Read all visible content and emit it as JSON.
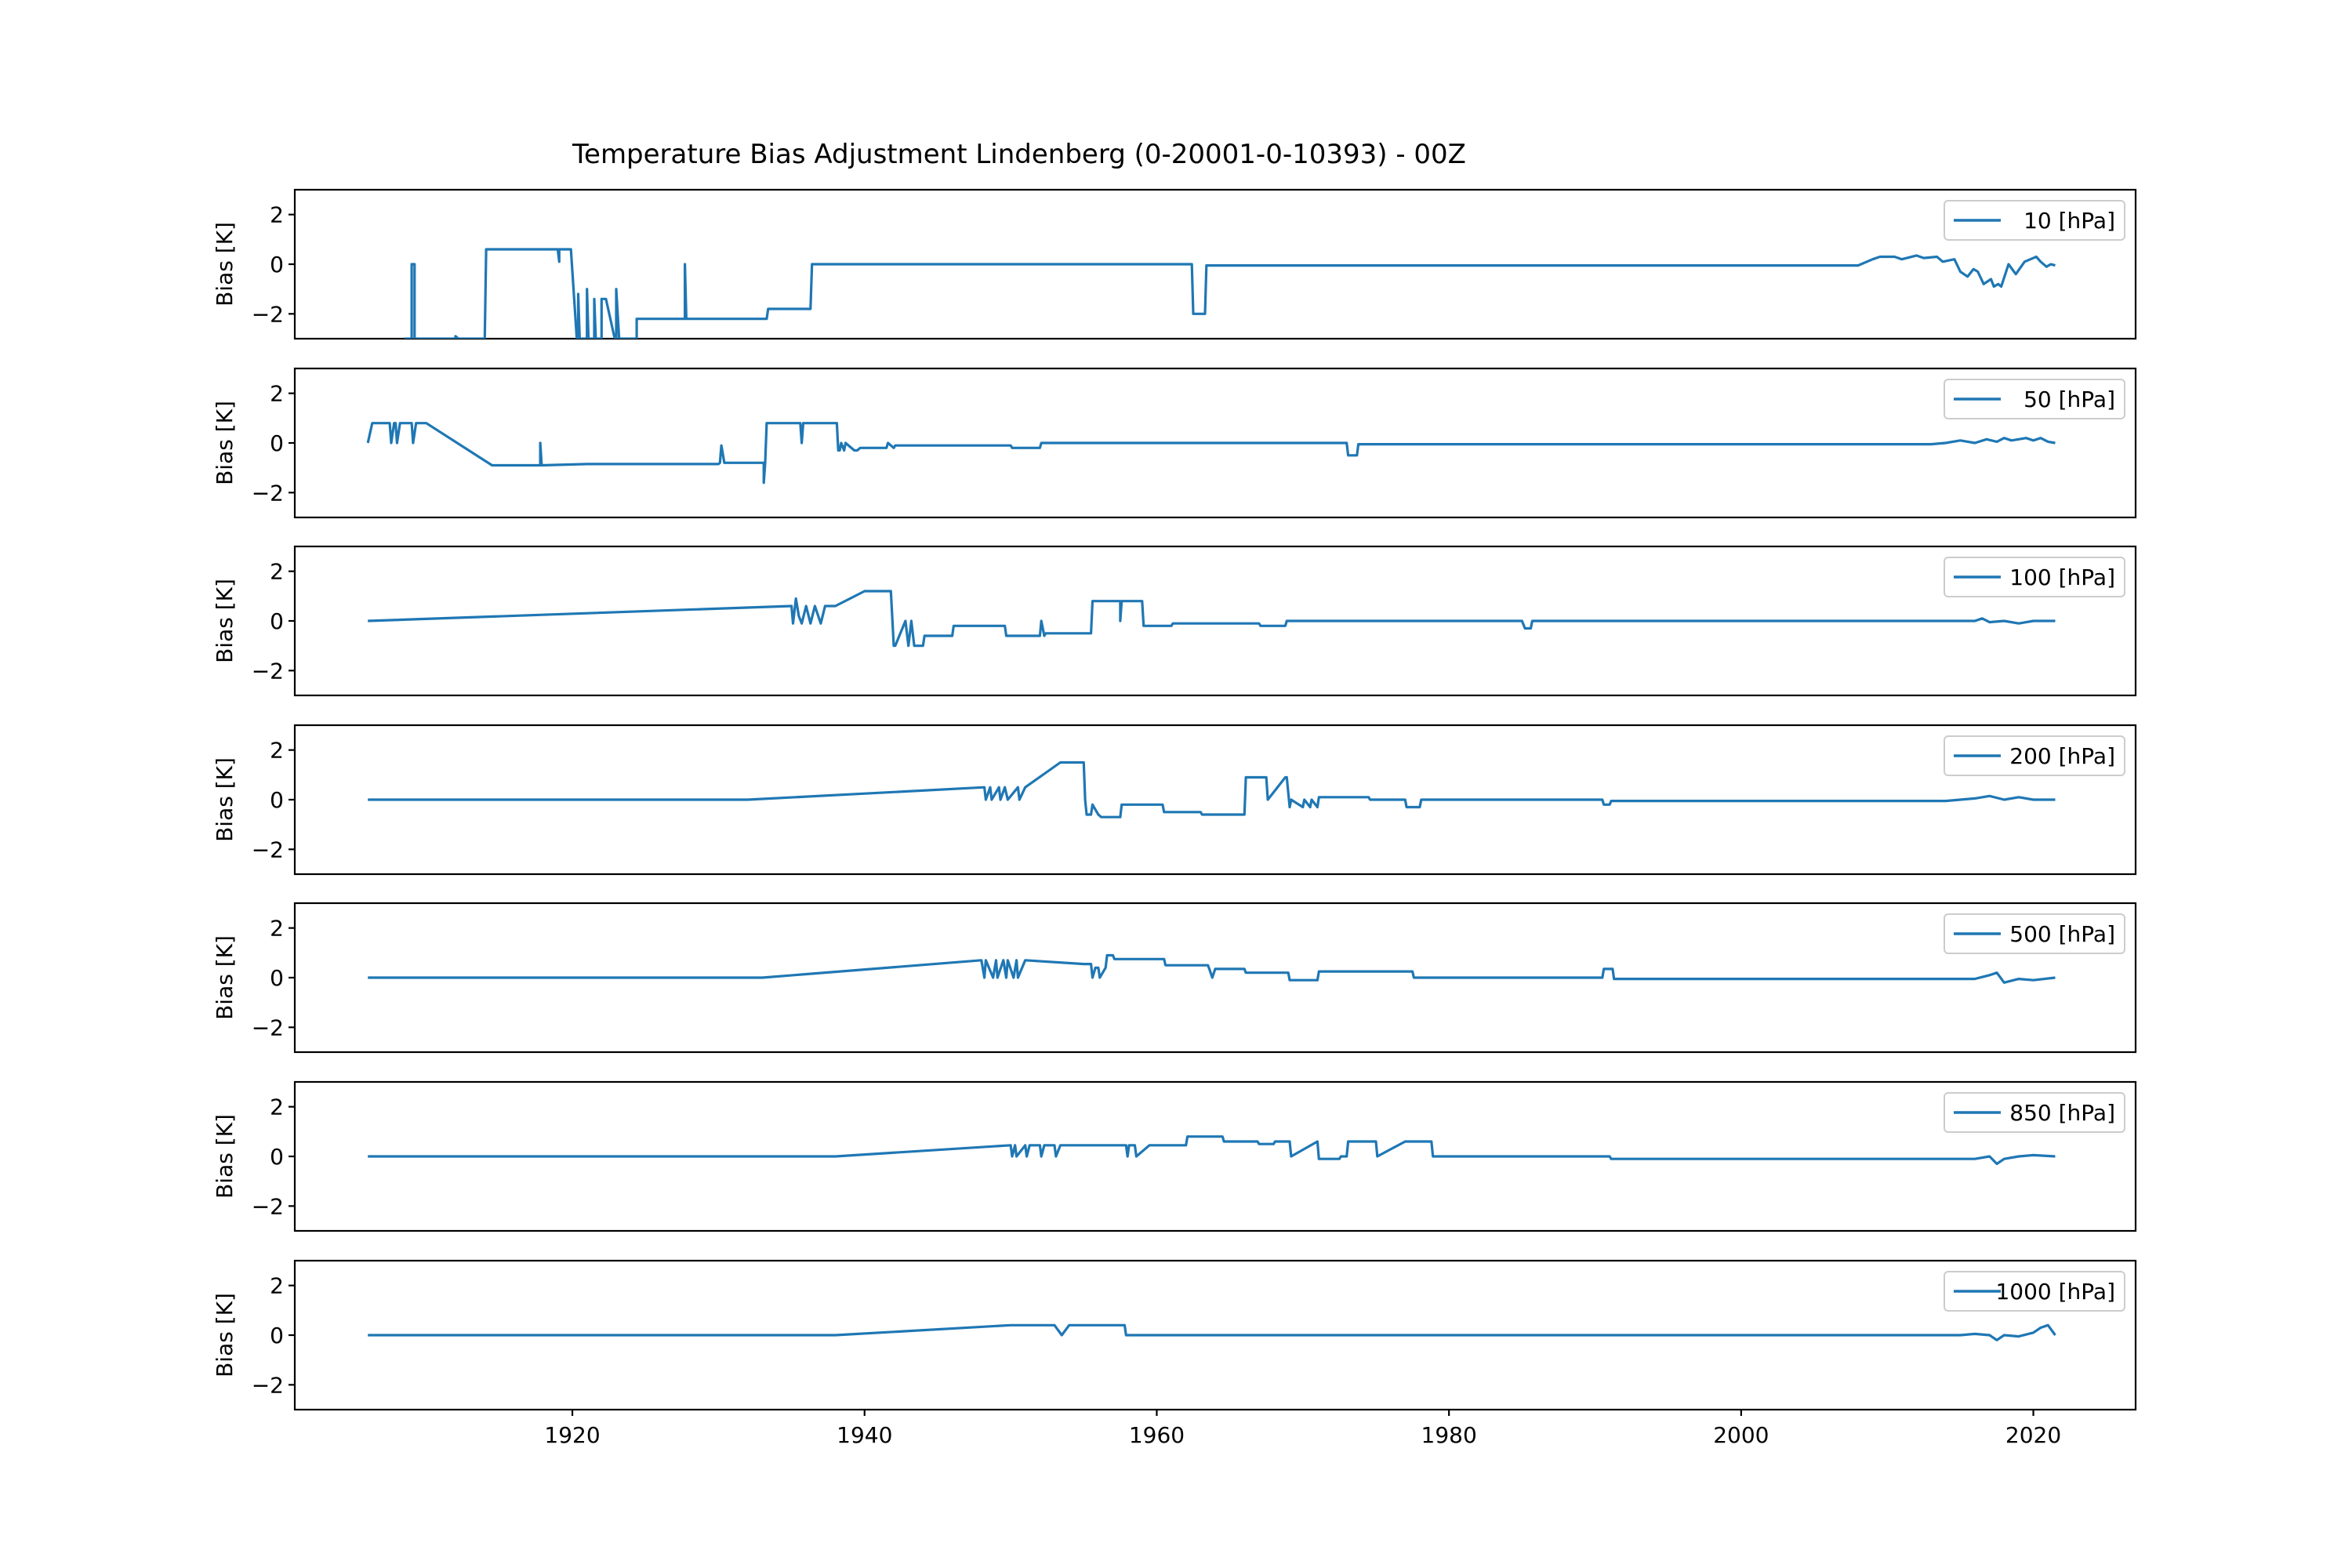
{
  "figure": {
    "title": "Temperature Bias Adjustment Lindenberg (0-20001-0-10393) - 00Z"
  },
  "colors": {
    "series": "#1f77b4",
    "axis": "#000000",
    "legend_border": "#cccccc"
  },
  "chart_data": [
    {
      "type": "line",
      "ylabel": "Bias [K]",
      "xlabel": "",
      "ylim": [
        -3,
        3
      ],
      "xlim": [
        1901,
        2027
      ],
      "yticks": [
        -2,
        0,
        2
      ],
      "xticks": [],
      "legend": "upper right",
      "grid": false,
      "series": [
        {
          "name": "10 [hPa]",
          "x": [
            1908.5,
            1909.0,
            1909.0,
            1909.2,
            1909.2,
            1909.6,
            1911.8,
            1912.0,
            1912.0,
            1912.2,
            1914.0,
            1914.1,
            1914.2,
            1919.0,
            1919.1,
            1919.1,
            1919.2,
            1919.3,
            1919.3,
            1919.9,
            1920.3,
            1920.4,
            1920.4,
            1920.5,
            1920.9,
            1921.0,
            1921.0,
            1921.1,
            1921.4,
            1921.5,
            1921.5,
            1921.6,
            1921.9,
            1922.0,
            1922.0,
            1922.3,
            1922.9,
            1923.0,
            1923.0,
            1923.2,
            1924.3,
            1924.4,
            1924.4,
            1924.6,
            1924.9,
            1925.0,
            1925.0,
            1927.6,
            1927.7,
            1927.7,
            1927.8,
            1933.3,
            1933.4,
            1936.2,
            1936.3,
            1936.4,
            1937.0,
            1937.1,
            1962.4,
            1962.5,
            1963.2,
            1963.3,
            1963.4,
            1991.8,
            2007.7,
            2008.0,
            2009.0,
            2009.5,
            2010.5,
            2011.0,
            2012.0,
            2012.5,
            2013.4,
            2013.8,
            2014.6,
            2015.0,
            2015.5,
            2015.9,
            2016.2,
            2016.6,
            2017.1,
            2017.3,
            2017.6,
            2017.8,
            2018.3,
            2018.8,
            2019.4,
            2019.8,
            2020.2,
            2020.5,
            2020.9,
            2021.2,
            2021.5
          ],
          "y": [
            -3.0,
            -3.0,
            0.0,
            0.0,
            -3.0,
            -3.0,
            -3.0,
            -3.0,
            -2.9,
            -3.0,
            -3.0,
            0.6,
            0.6,
            0.6,
            0.1,
            0.6,
            0.6,
            0.6,
            0.6,
            0.6,
            -3.0,
            -3.0,
            -1.2,
            -3.0,
            -3.0,
            -3.0,
            -1.0,
            -3.0,
            -3.0,
            -3.0,
            -1.4,
            -3.0,
            -3.0,
            -3.0,
            -1.4,
            -1.4,
            -3.0,
            -3.0,
            -1.0,
            -3.0,
            -3.0,
            -3.0,
            -2.2,
            -2.2,
            -2.2,
            -2.2,
            -2.2,
            -2.2,
            -2.2,
            0.0,
            -2.2,
            -2.2,
            -1.8,
            -1.8,
            -1.8,
            0.0,
            0.0,
            0.0,
            0.0,
            -2.0,
            -2.0,
            -2.0,
            -0.05,
            -0.05,
            -0.05,
            -0.05,
            0.2,
            0.3,
            0.3,
            0.2,
            0.35,
            0.25,
            0.3,
            0.1,
            0.2,
            -0.3,
            -0.5,
            -0.2,
            -0.3,
            -0.8,
            -0.6,
            -0.9,
            -0.8,
            -0.9,
            0.0,
            -0.4,
            0.1,
            0.2,
            0.3,
            0.1,
            -0.1,
            0.0,
            -0.05
          ]
        }
      ]
    },
    {
      "type": "line",
      "ylabel": "Bias [K]",
      "xlabel": "",
      "ylim": [
        -3,
        3
      ],
      "xlim": [
        1901,
        2027
      ],
      "yticks": [
        -2,
        0,
        2
      ],
      "xticks": [],
      "legend": "upper right",
      "grid": false,
      "series": [
        {
          "name": "50 [hPa]",
          "x": [
            1906.0,
            1906.3,
            1906.5,
            1907.5,
            1907.6,
            1907.8,
            1907.9,
            1908.0,
            1908.2,
            1908.4,
            1908.5,
            1909.0,
            1909.1,
            1909.3,
            1909.8,
            1910.0,
            1914.5,
            1917.7,
            1917.8,
            1917.8,
            1917.9,
            1921.0,
            1929.8,
            1930.0,
            1930.1,
            1930.2,
            1930.4,
            1933.1,
            1933.1,
            1933.2,
            1933.3,
            1933.4,
            1934.2,
            1935.6,
            1935.7,
            1935.8,
            1938.1,
            1938.2,
            1938.3,
            1938.4,
            1938.6,
            1938.7,
            1939.3,
            1939.5,
            1939.7,
            1941.5,
            1941.6,
            1942.0,
            1942.1,
            1950.0,
            1950.1,
            1952.0,
            1952.1,
            1973.0,
            1973.1,
            1973.7,
            1973.8,
            2013.0,
            2014.0,
            2015.0,
            2016.0,
            2016.8,
            2017.5,
            2018.0,
            2018.5,
            2019.0,
            2019.5,
            2020.0,
            2020.5,
            2021.0,
            2021.5
          ],
          "y": [
            0.0,
            0.8,
            0.8,
            0.8,
            0.0,
            0.8,
            0.8,
            0.0,
            0.8,
            0.8,
            0.8,
            0.8,
            0.0,
            0.8,
            0.8,
            0.8,
            -0.9,
            -0.9,
            -0.9,
            0.0,
            -0.9,
            -0.85,
            -0.85,
            -0.85,
            -0.8,
            -0.1,
            -0.8,
            -0.8,
            -1.6,
            -0.8,
            0.8,
            0.8,
            0.8,
            0.8,
            0.0,
            0.8,
            0.8,
            -0.3,
            -0.3,
            0.0,
            -0.3,
            0.0,
            -0.3,
            -0.3,
            -0.2,
            -0.2,
            0.0,
            -0.2,
            -0.1,
            -0.1,
            -0.2,
            -0.2,
            0.0,
            0.0,
            -0.5,
            -0.5,
            -0.05,
            -0.05,
            0.0,
            0.1,
            0.0,
            0.15,
            0.05,
            0.2,
            0.1,
            0.15,
            0.2,
            0.1,
            0.2,
            0.05,
            0.0
          ]
        }
      ]
    },
    {
      "type": "line",
      "ylabel": "Bias [K]",
      "xlabel": "",
      "ylim": [
        -3,
        3
      ],
      "xlim": [
        1901,
        2027
      ],
      "yticks": [
        -2,
        0,
        2
      ],
      "xticks": [],
      "legend": "upper right",
      "grid": false,
      "series": [
        {
          "name": "100 [hPa]",
          "x": [
            1906.0,
            1935.0,
            1935.1,
            1935.3,
            1935.5,
            1935.7,
            1936.0,
            1936.3,
            1936.6,
            1937.0,
            1937.3,
            1937.5,
            1938.0,
            1940.0,
            1941.8,
            1942.0,
            1942.1,
            1942.8,
            1943.0,
            1943.2,
            1943.4,
            1944.0,
            1944.1,
            1946.0,
            1946.1,
            1949.6,
            1949.7,
            1952.0,
            1952.1,
            1952.3,
            1952.4,
            1955.5,
            1955.6,
            1957.5,
            1957.5,
            1957.6,
            1959.0,
            1959.1,
            1960.0,
            1961.0,
            1961.1,
            1965.0,
            1965.1,
            1967.0,
            1967.1,
            1968.8,
            1968.9,
            1985.0,
            1985.2,
            1985.6,
            1985.7,
            2015.0,
            2016.0,
            2016.5,
            2017.0,
            2018.0,
            2019.0,
            2020.0,
            2021.5
          ],
          "y": [
            0.0,
            0.6,
            -0.1,
            0.9,
            0.2,
            -0.1,
            0.6,
            -0.1,
            0.6,
            -0.1,
            0.6,
            0.6,
            0.6,
            1.2,
            1.2,
            -1.0,
            -1.0,
            0.0,
            -1.0,
            0.0,
            -1.0,
            -1.0,
            -0.6,
            -0.6,
            -0.2,
            -0.2,
            -0.6,
            -0.6,
            0.0,
            -0.6,
            -0.5,
            -0.5,
            0.8,
            0.8,
            0.0,
            0.8,
            0.8,
            -0.2,
            -0.2,
            -0.2,
            -0.1,
            -0.1,
            -0.1,
            -0.1,
            -0.2,
            -0.2,
            0.0,
            0.0,
            -0.3,
            -0.3,
            0.0,
            0.0,
            0.0,
            0.1,
            -0.05,
            0.0,
            -0.1,
            0.0,
            0.0
          ]
        }
      ]
    },
    {
      "type": "line",
      "ylabel": "Bias [K]",
      "xlabel": "",
      "ylim": [
        -3,
        3
      ],
      "xlim": [
        1901,
        2027
      ],
      "yticks": [
        -2,
        0,
        2
      ],
      "xticks": [],
      "legend": "upper right",
      "grid": false,
      "series": [
        {
          "name": "200 [hPa]",
          "x": [
            1906.0,
            1932.0,
            1948.2,
            1948.3,
            1948.6,
            1948.7,
            1949.2,
            1949.3,
            1949.6,
            1949.8,
            1950.5,
            1950.6,
            1951.0,
            1953.4,
            1955.0,
            1955.1,
            1955.2,
            1955.5,
            1955.6,
            1956.0,
            1956.2,
            1957.5,
            1957.6,
            1960.4,
            1960.5,
            1963.0,
            1963.1,
            1966.0,
            1966.1,
            1967.5,
            1967.6,
            1968.8,
            1968.9,
            1969.1,
            1969.2,
            1970.0,
            1970.1,
            1970.5,
            1970.6,
            1971.0,
            1971.1,
            1974.5,
            1974.6,
            1977.0,
            1977.1,
            1978.0,
            1978.1,
            1990.5,
            1990.6,
            1991.0,
            1991.1,
            2014.0,
            2016.0,
            2017.0,
            2018.0,
            2019.0,
            2020.0,
            2021.5
          ],
          "y": [
            0.0,
            0.0,
            0.5,
            0.0,
            0.5,
            0.0,
            0.5,
            0.0,
            0.5,
            0.0,
            0.5,
            0.0,
            0.5,
            1.5,
            1.5,
            0.0,
            -0.6,
            -0.6,
            -0.2,
            -0.6,
            -0.7,
            -0.7,
            -0.2,
            -0.2,
            -0.5,
            -0.5,
            -0.6,
            -0.6,
            0.9,
            0.9,
            0.0,
            0.9,
            0.9,
            -0.3,
            0.0,
            -0.3,
            0.0,
            -0.3,
            0.0,
            -0.3,
            0.1,
            0.1,
            0.0,
            0.0,
            -0.3,
            -0.3,
            0.0,
            0.0,
            -0.2,
            -0.2,
            -0.05,
            -0.05,
            0.05,
            0.15,
            0.0,
            0.1,
            0.0,
            0.0
          ]
        }
      ]
    },
    {
      "type": "line",
      "ylabel": "Bias [K]",
      "xlabel": "",
      "ylim": [
        -3,
        3
      ],
      "xlim": [
        1901,
        2027
      ],
      "yticks": [
        -2,
        0,
        2
      ],
      "xticks": [],
      "legend": "upper right",
      "grid": false,
      "series": [
        {
          "name": "500 [hPa]",
          "x": [
            1906.0,
            1933.0,
            1948.0,
            1948.2,
            1948.3,
            1948.8,
            1949.0,
            1949.1,
            1949.5,
            1949.7,
            1949.8,
            1950.2,
            1950.4,
            1950.5,
            1951.0,
            1955.0,
            1955.5,
            1955.6,
            1955.8,
            1956.0,
            1956.1,
            1956.5,
            1956.6,
            1957.0,
            1957.1,
            1958.0,
            1958.1,
            1960.5,
            1960.6,
            1963.5,
            1963.6,
            1963.8,
            1964.0,
            1966.0,
            1966.1,
            1968.0,
            1968.1,
            1969.0,
            1969.1,
            1971.0,
            1971.1,
            1977.5,
            1977.6,
            1990.5,
            1990.6,
            1991.2,
            1991.3,
            2016.0,
            2017.0,
            2017.5,
            2018.0,
            2019.0,
            2020.0,
            2021.5
          ],
          "y": [
            0.0,
            0.0,
            0.7,
            0.0,
            0.7,
            0.0,
            0.7,
            0.0,
            0.7,
            0.0,
            0.7,
            0.0,
            0.7,
            0.0,
            0.7,
            0.55,
            0.55,
            0.0,
            0.4,
            0.4,
            0.0,
            0.4,
            0.9,
            0.9,
            0.75,
            0.75,
            0.75,
            0.75,
            0.5,
            0.5,
            0.35,
            0.0,
            0.35,
            0.35,
            0.2,
            0.2,
            0.2,
            0.2,
            -0.1,
            -0.1,
            0.25,
            0.25,
            0.0,
            0.0,
            0.35,
            0.35,
            -0.05,
            -0.05,
            0.1,
            0.2,
            -0.2,
            -0.05,
            -0.1,
            0.0
          ]
        }
      ]
    },
    {
      "type": "line",
      "ylabel": "Bias [K]",
      "xlabel": "",
      "ylim": [
        -3,
        3
      ],
      "xlim": [
        1901,
        2027
      ],
      "yticks": [
        -2,
        0,
        2
      ],
      "xticks": [],
      "legend": "upper right",
      "grid": false,
      "series": [
        {
          "name": "850 [hPa]",
          "x": [
            1906.0,
            1938.0,
            1950.0,
            1950.1,
            1950.3,
            1950.4,
            1951.0,
            1951.1,
            1951.3,
            1952.0,
            1952.1,
            1952.3,
            1953.0,
            1953.1,
            1953.4,
            1957.9,
            1958.0,
            1958.1,
            1958.5,
            1958.6,
            1959.5,
            1959.6,
            1962.0,
            1962.1,
            1963.0,
            1964.5,
            1964.6,
            1966.8,
            1966.9,
            1967.0,
            1968.0,
            1968.1,
            1969.0,
            1969.1,
            1969.2,
            1971.0,
            1971.1,
            1972.5,
            1972.6,
            1973.0,
            1973.1,
            1975.0,
            1975.1,
            1977.0,
            1977.1,
            1978.8,
            1978.9,
            1991.0,
            1991.1,
            2016.0,
            2017.0,
            2017.5,
            2018.0,
            2019.0,
            2020.0,
            2021.5
          ],
          "y": [
            0.0,
            0.0,
            0.45,
            0.0,
            0.45,
            0.0,
            0.45,
            0.0,
            0.45,
            0.45,
            0.0,
            0.45,
            0.45,
            0.0,
            0.45,
            0.45,
            0.0,
            0.45,
            0.45,
            0.0,
            0.45,
            0.45,
            0.45,
            0.8,
            0.8,
            0.8,
            0.6,
            0.6,
            0.6,
            0.5,
            0.5,
            0.6,
            0.6,
            0.6,
            0.0,
            0.6,
            -0.1,
            -0.1,
            0.0,
            0.0,
            0.6,
            0.6,
            0.0,
            0.6,
            0.6,
            0.6,
            0.0,
            0.0,
            -0.1,
            -0.1,
            0.0,
            -0.3,
            -0.1,
            0.0,
            0.05,
            0.0
          ]
        }
      ]
    },
    {
      "type": "line",
      "ylabel": "Bias [K]",
      "xlabel": "",
      "ylim": [
        -3,
        3
      ],
      "xlim": [
        1901,
        2027
      ],
      "yticks": [
        -2,
        0,
        2
      ],
      "xticks": [
        1920,
        1940,
        1960,
        1980,
        2000,
        2020
      ],
      "legend": "upper right",
      "grid": false,
      "series": [
        {
          "name": "1000 [hPa]",
          "x": [
            1906.0,
            1938.0,
            1950.0,
            1953.0,
            1953.5,
            1954.0,
            1957.8,
            1957.9,
            2015.0,
            2016.0,
            2017.0,
            2017.5,
            2018.0,
            2019.0,
            2020.0,
            2020.5,
            2021.0,
            2021.5
          ],
          "y": [
            0.0,
            0.0,
            0.4,
            0.4,
            0.0,
            0.4,
            0.4,
            0.0,
            0.0,
            0.05,
            0.0,
            -0.2,
            0.0,
            -0.05,
            0.1,
            0.3,
            0.4,
            0.0
          ]
        }
      ]
    }
  ]
}
